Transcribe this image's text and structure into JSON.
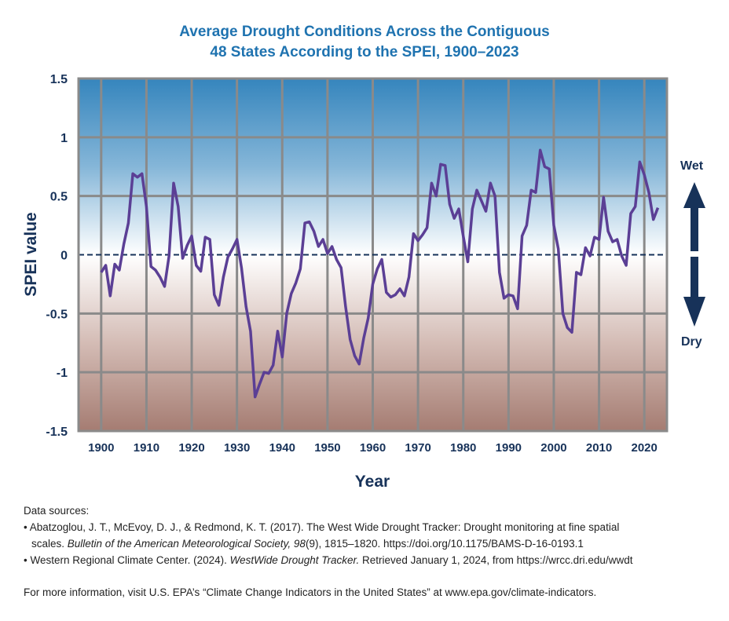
{
  "title_lines": [
    "Average Drought Conditions Across the Contiguous",
    "48 States According to the SPEI, 1900–2023"
  ],
  "chart_data": {
    "type": "line",
    "title": "Average Drought Conditions Across the Contiguous 48 States According to the SPEI, 1900–2023",
    "xlabel": "Year",
    "ylabel": "SPEI value",
    "xlim": [
      1895,
      2025
    ],
    "ylim": [
      -1.5,
      1.5
    ],
    "x_ticks": [
      1900,
      1910,
      1920,
      1930,
      1940,
      1950,
      1960,
      1970,
      1980,
      1990,
      2000,
      2010,
      2020
    ],
    "y_ticks": [
      1.5,
      1,
      0.5,
      0,
      -0.5,
      -1,
      -1.5
    ],
    "y_tick_labels": [
      "1.5",
      "1",
      "0.5",
      "0",
      "-0.5",
      "-1",
      "-1.5"
    ],
    "grid": true,
    "reference_line": {
      "y": 0,
      "style": "dashed"
    },
    "background": "gradient blue (wet, top) to white (0) to brown (dry, bottom)",
    "annotations": {
      "wet_label": "Wet",
      "dry_label": "Dry"
    },
    "series": [
      {
        "name": "SPEI",
        "color": "#5b3f95",
        "x": [
          1900,
          1901,
          1902,
          1903,
          1904,
          1905,
          1906,
          1907,
          1908,
          1909,
          1910,
          1911,
          1912,
          1913,
          1914,
          1915,
          1916,
          1917,
          1918,
          1919,
          1920,
          1921,
          1922,
          1923,
          1924,
          1925,
          1926,
          1927,
          1928,
          1929,
          1930,
          1931,
          1932,
          1933,
          1934,
          1935,
          1936,
          1937,
          1938,
          1939,
          1940,
          1941,
          1942,
          1943,
          1944,
          1945,
          1946,
          1947,
          1948,
          1949,
          1950,
          1951,
          1952,
          1953,
          1954,
          1955,
          1956,
          1957,
          1958,
          1959,
          1960,
          1961,
          1962,
          1963,
          1964,
          1965,
          1966,
          1967,
          1968,
          1969,
          1970,
          1971,
          1972,
          1973,
          1974,
          1975,
          1976,
          1977,
          1978,
          1979,
          1980,
          1981,
          1982,
          1983,
          1984,
          1985,
          1986,
          1987,
          1988,
          1989,
          1990,
          1991,
          1992,
          1993,
          1994,
          1995,
          1996,
          1997,
          1998,
          1999,
          2000,
          2001,
          2002,
          2003,
          2004,
          2005,
          2006,
          2007,
          2008,
          2009,
          2010,
          2011,
          2012,
          2013,
          2014,
          2015,
          2016,
          2017,
          2018,
          2019,
          2020,
          2021,
          2022,
          2023
        ],
        "values": [
          -0.15,
          -0.09,
          -0.35,
          -0.08,
          -0.13,
          0.09,
          0.27,
          0.69,
          0.66,
          0.69,
          0.41,
          -0.1,
          -0.13,
          -0.19,
          -0.27,
          -0.01,
          0.61,
          0.41,
          -0.03,
          0.08,
          0.16,
          -0.09,
          -0.14,
          0.15,
          0.13,
          -0.34,
          -0.43,
          -0.19,
          -0.02,
          0.05,
          0.13,
          -0.11,
          -0.44,
          -0.65,
          -1.21,
          -1.1,
          -1.0,
          -1.01,
          -0.94,
          -0.65,
          -0.87,
          -0.5,
          -0.33,
          -0.24,
          -0.12,
          0.27,
          0.28,
          0.2,
          0.07,
          0.13,
          0.01,
          0.07,
          -0.04,
          -0.11,
          -0.44,
          -0.72,
          -0.86,
          -0.93,
          -0.71,
          -0.54,
          -0.25,
          -0.12,
          -0.04,
          -0.32,
          -0.36,
          -0.34,
          -0.29,
          -0.35,
          -0.19,
          0.18,
          0.12,
          0.17,
          0.23,
          0.61,
          0.5,
          0.77,
          0.76,
          0.43,
          0.31,
          0.39,
          0.16,
          -0.06,
          0.39,
          0.55,
          0.46,
          0.37,
          0.61,
          0.5,
          -0.15,
          -0.37,
          -0.34,
          -0.35,
          -0.46,
          0.16,
          0.25,
          0.55,
          0.53,
          0.89,
          0.75,
          0.73,
          0.25,
          0.05,
          -0.5,
          -0.62,
          -0.66,
          -0.15,
          -0.17,
          0.06,
          -0.01,
          0.15,
          0.13,
          0.49,
          0.2,
          0.11,
          0.13,
          -0.01,
          -0.09,
          0.35,
          0.41,
          0.79,
          0.68,
          0.53,
          0.3,
          0.4
        ]
      }
    ]
  },
  "footer": {
    "sources_heading": "Data sources:",
    "source1_line1": "• Abatzoglou, J. T., McEvoy, D. J., & Redmond, K. T. (2017). The West Wide Drought Tracker: Drought monitoring at fine spatial",
    "source1_line2_pre": "scales. ",
    "source1_line2_italic": "Bulletin of the American Meteorological Society, 98",
    "source1_line2_post": "(9), 1815–1820. https://doi.org/10.1175/BAMS-D-16-0193.1",
    "source2_pre": "• Western Regional Climate Center. (2024). ",
    "source2_italic": "WestWide Drought Tracker.",
    "source2_post": " Retrieved January 1, 2024, from https://wrcc.dri.edu/wwdt",
    "more_info": "For more information, visit U.S. EPA’s “Climate Change Indicators in the United States” at www.epa.gov/climate-indicators."
  }
}
